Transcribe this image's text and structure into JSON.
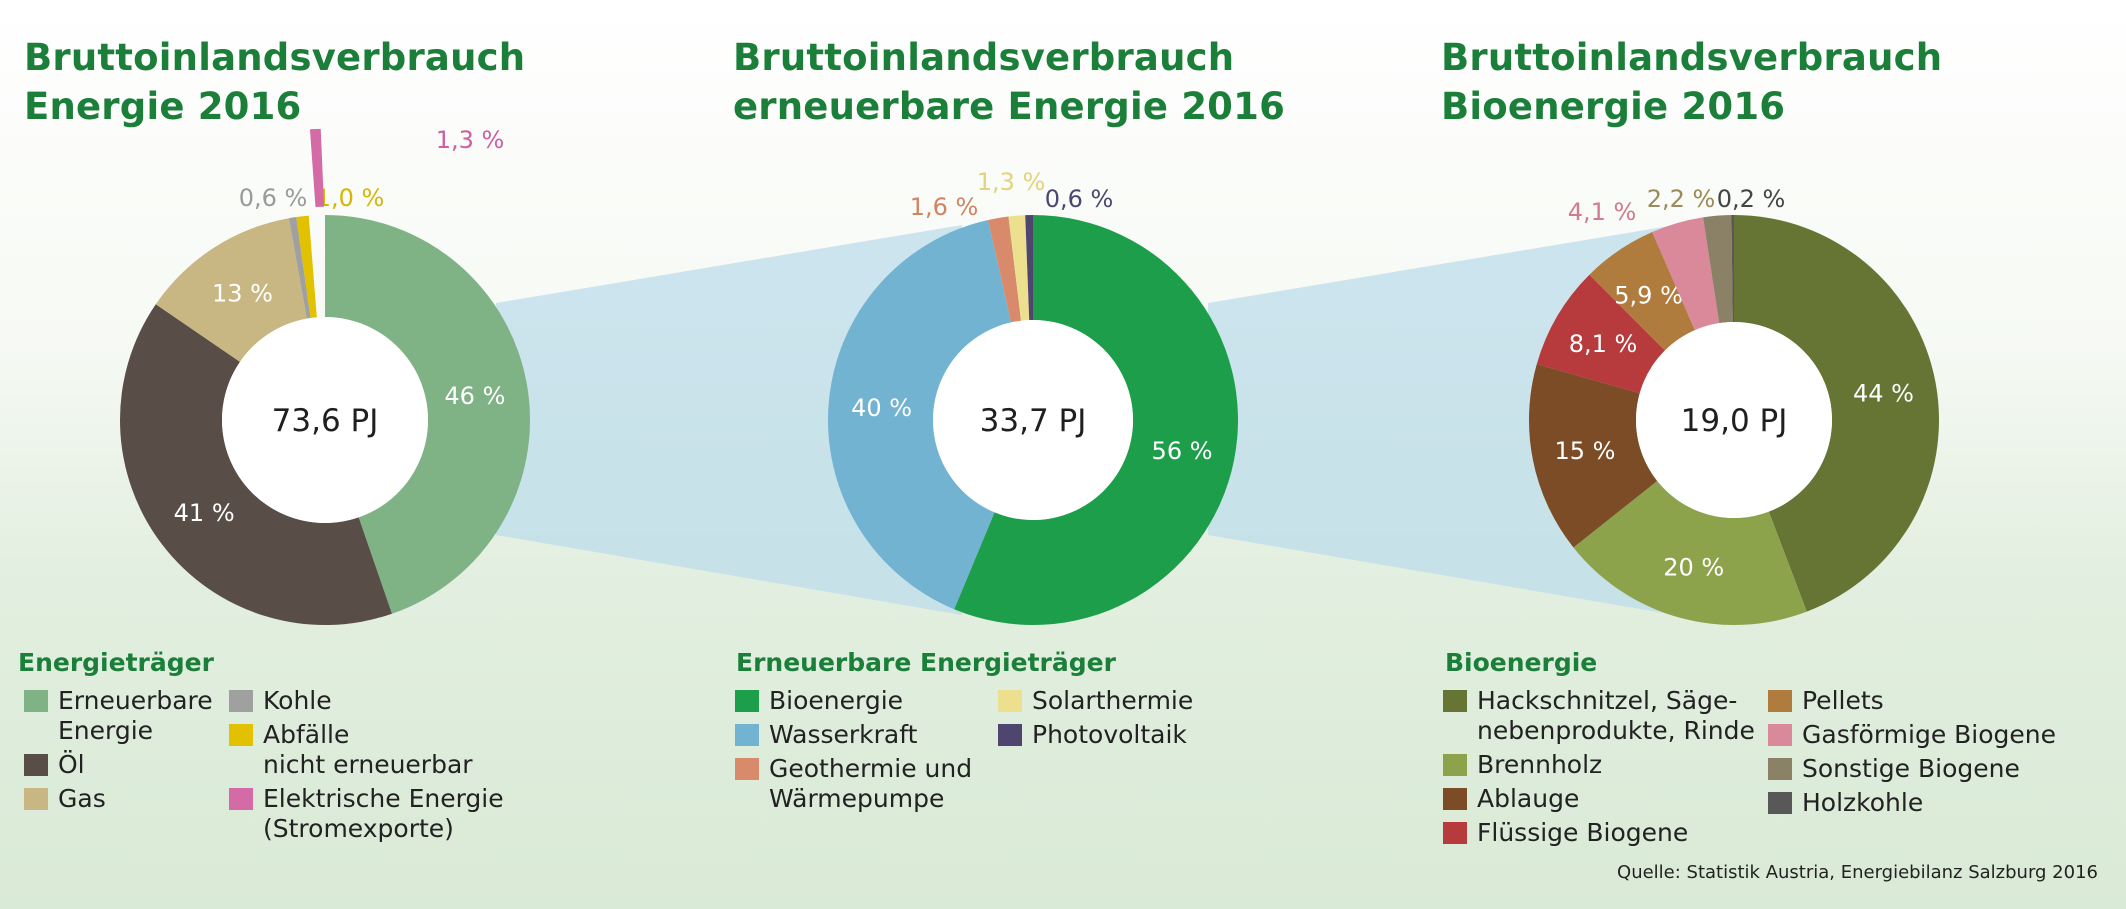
{
  "charts": [
    {
      "title_line1": "Bruttoinlandsverbrauch",
      "title_line2": "Energie 2016",
      "legend_title": "Energieträger",
      "legend_col1": [
        {
          "label": "Erneuerbare\nEnergie",
          "color": "#7fb386"
        },
        {
          "label": "Öl",
          "color": "#584d47"
        },
        {
          "label": "Gas",
          "color": "#c8b783"
        }
      ],
      "legend_col2": [
        {
          "label": "Kohle",
          "color": "#a0a0a0"
        },
        {
          "label": "Abfälle\nnicht erneuerbar",
          "color": "#e2c200"
        },
        {
          "label": "Elektrische Energie\n(Stromexporte)",
          "color": "#d46aa6"
        }
      ]
    },
    {
      "title_line1": "Bruttoinlandsverbrauch",
      "title_line2": "erneuerbare Energie 2016",
      "legend_title": "Erneuerbare Energieträger",
      "legend_col1": [
        {
          "label": "Bioenergie",
          "color": "#1c9e4a"
        },
        {
          "label": "Wasserkraft",
          "color": "#72b3d2"
        },
        {
          "label": "Geothermie und\nWärmepumpe",
          "color": "#d98a6b"
        }
      ],
      "legend_col2": [
        {
          "label": "Solarthermie",
          "color": "#ece08f"
        },
        {
          "label": "Photovoltaik",
          "color": "#4f4670"
        }
      ]
    },
    {
      "title_line1": "Bruttoinlandsverbrauch",
      "title_line2": "Bioenergie 2016",
      "legend_title": "Bioenergie",
      "legend_col1": [
        {
          "label": "Hackschnitzel, Säge-\nnebenprodukte, Rinde",
          "color": "#667434"
        },
        {
          "label": "Brennholz",
          "color": "#8da34b"
        },
        {
          "label": "Ablauge",
          "color": "#7b4c25"
        },
        {
          "label": "Flüssige Biogene",
          "color": "#b73a3c"
        }
      ],
      "legend_col2": [
        {
          "label": "Pellets",
          "color": "#b07c3e"
        },
        {
          "label": "Gasförmige Biogene",
          "color": "#d9899a"
        },
        {
          "label": "Sonstige Biogene",
          "color": "#8a8166"
        },
        {
          "label": "Holzkohle",
          "color": "#585858"
        }
      ]
    }
  ],
  "chart_data": [
    {
      "type": "pie",
      "title": "Bruttoinlandsverbrauch Energie 2016",
      "center_label": "73,6 PJ",
      "slices": [
        {
          "name": "Erneuerbare Energie",
          "value": 46,
          "label": "46 %",
          "color": "#7fb386",
          "label_color": "#ffffff"
        },
        {
          "name": "Öl",
          "value": 41,
          "label": "41 %",
          "color": "#584d47",
          "label_color": "#ffffff"
        },
        {
          "name": "Gas",
          "value": 13,
          "label": "13 %",
          "color": "#c8b783",
          "label_color": "#ffffff"
        },
        {
          "name": "Kohle",
          "value": 0.6,
          "label": "0,6 %",
          "color": "#a0a0a0",
          "label_color": "#9a9a9a"
        },
        {
          "name": "Abfälle nicht erneuerbar",
          "value": 1.0,
          "label": "1,0 %",
          "color": "#e2c200",
          "label_color": "#d7b500"
        },
        {
          "name": "Elektrische Energie (Stromexporte)",
          "value": 1.3,
          "label": "1,3 %",
          "color": "#d46aa6",
          "label_color": "#cf5f9e",
          "exported": true
        }
      ]
    },
    {
      "type": "pie",
      "title": "Bruttoinlandsverbrauch erneuerbare Energie 2016",
      "center_label": "33,7 PJ",
      "slices": [
        {
          "name": "Bioenergie",
          "value": 56,
          "label": "56 %",
          "color": "#1c9e4a",
          "label_color": "#ffffff"
        },
        {
          "name": "Wasserkraft",
          "value": 40,
          "label": "40 %",
          "color": "#72b3d2",
          "label_color": "#ffffff"
        },
        {
          "name": "Geothermie und Wärmepumpe",
          "value": 1.6,
          "label": "1,6 %",
          "color": "#d98a6b",
          "label_color": "#d08462"
        },
        {
          "name": "Solarthermie",
          "value": 1.3,
          "label": "1,3 %",
          "color": "#ece08f",
          "label_color": "#e3d37a"
        },
        {
          "name": "Photovoltaik",
          "value": 0.6,
          "label": "0,6 %",
          "color": "#4f4670",
          "label_color": "#4f4670"
        }
      ]
    },
    {
      "type": "pie",
      "title": "Bruttoinlandsverbrauch Bioenergie 2016",
      "center_label": "19,0 PJ",
      "slices": [
        {
          "name": "Hackschnitzel, Sägenebenprodukte, Rinde",
          "value": 44,
          "label": "44 %",
          "color": "#667434",
          "label_color": "#ffffff"
        },
        {
          "name": "Brennholz",
          "value": 20,
          "label": "20 %",
          "color": "#8da34b",
          "label_color": "#ffffff"
        },
        {
          "name": "Ablauge",
          "value": 15,
          "label": "15 %",
          "color": "#7b4c25",
          "label_color": "#ffffff"
        },
        {
          "name": "Flüssige Biogene",
          "value": 8.1,
          "label": "8,1 %",
          "color": "#b73a3c",
          "label_color": "#ffffff"
        },
        {
          "name": "Pellets",
          "value": 5.9,
          "label": "5,9 %",
          "color": "#b07c3e",
          "label_color": "#ffffff"
        },
        {
          "name": "Gasförmige Biogene",
          "value": 4.1,
          "label": "4,1 %",
          "color": "#d9899a",
          "label_color": "#d07c8e"
        },
        {
          "name": "Sonstige Biogene",
          "value": 2.2,
          "label": "2,2 %",
          "color": "#8a8166",
          "label_color": "#9c8a58"
        },
        {
          "name": "Holzkohle",
          "value": 0.2,
          "label": "0,2 %",
          "color": "#585858",
          "label_color": "#444444"
        }
      ]
    }
  ],
  "source": "Quelle: Statistik Austria, Energiebilanz Salzburg 2016",
  "colors": {
    "title_green": "#1b7f3a",
    "connector_blue": "#bcdcea"
  }
}
